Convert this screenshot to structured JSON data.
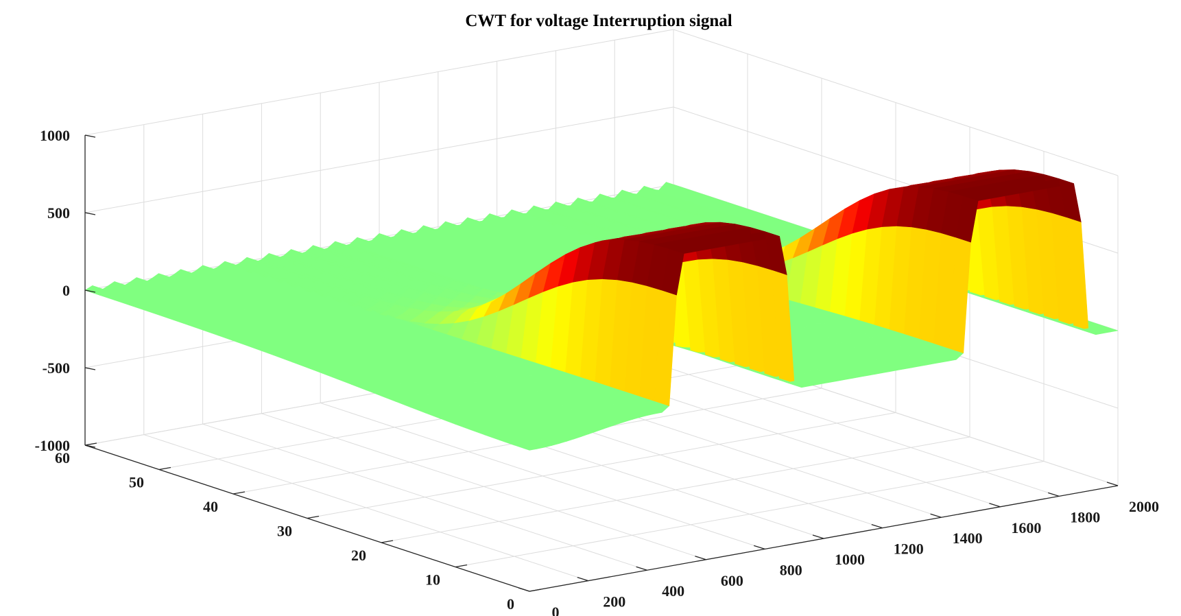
{
  "chart_data": {
    "type": "surface",
    "title": "CWT for voltage Interruption signal",
    "xlabel": "",
    "ylabel": "",
    "zlabel": "",
    "colormap": "jet",
    "grid": true,
    "x_axis": {
      "range": [
        0,
        2000
      ],
      "ticks": [
        0,
        200,
        400,
        600,
        800,
        1000,
        1200,
        1400,
        1600,
        1800,
        2000
      ],
      "tick_labels": [
        "0",
        "200",
        "400",
        "600",
        "800",
        "1000",
        "1200",
        "1400",
        "1600",
        "1800",
        "2000"
      ]
    },
    "y_axis": {
      "range": [
        0,
        60
      ],
      "ticks": [
        0,
        10,
        20,
        30,
        40,
        50,
        60
      ],
      "tick_labels": [
        "0",
        "10",
        "20",
        "30",
        "40",
        "50",
        "60"
      ]
    },
    "z_axis": {
      "range": [
        -1000,
        1000
      ],
      "ticks": [
        -1000,
        -500,
        0,
        500,
        1000
      ],
      "tick_labels": [
        "-1000",
        "-500",
        "0",
        "500",
        "1000"
      ]
    },
    "series": [
      {
        "description_points_x": [
          0,
          400,
          500,
          830,
          900,
          1400,
          1500,
          1850,
          1900,
          2000
        ],
        "scale_y_min": 0,
        "scale_y_max": 60,
        "z_range_at_low_scale": [
          -1000,
          1000
        ]
      }
    ]
  }
}
